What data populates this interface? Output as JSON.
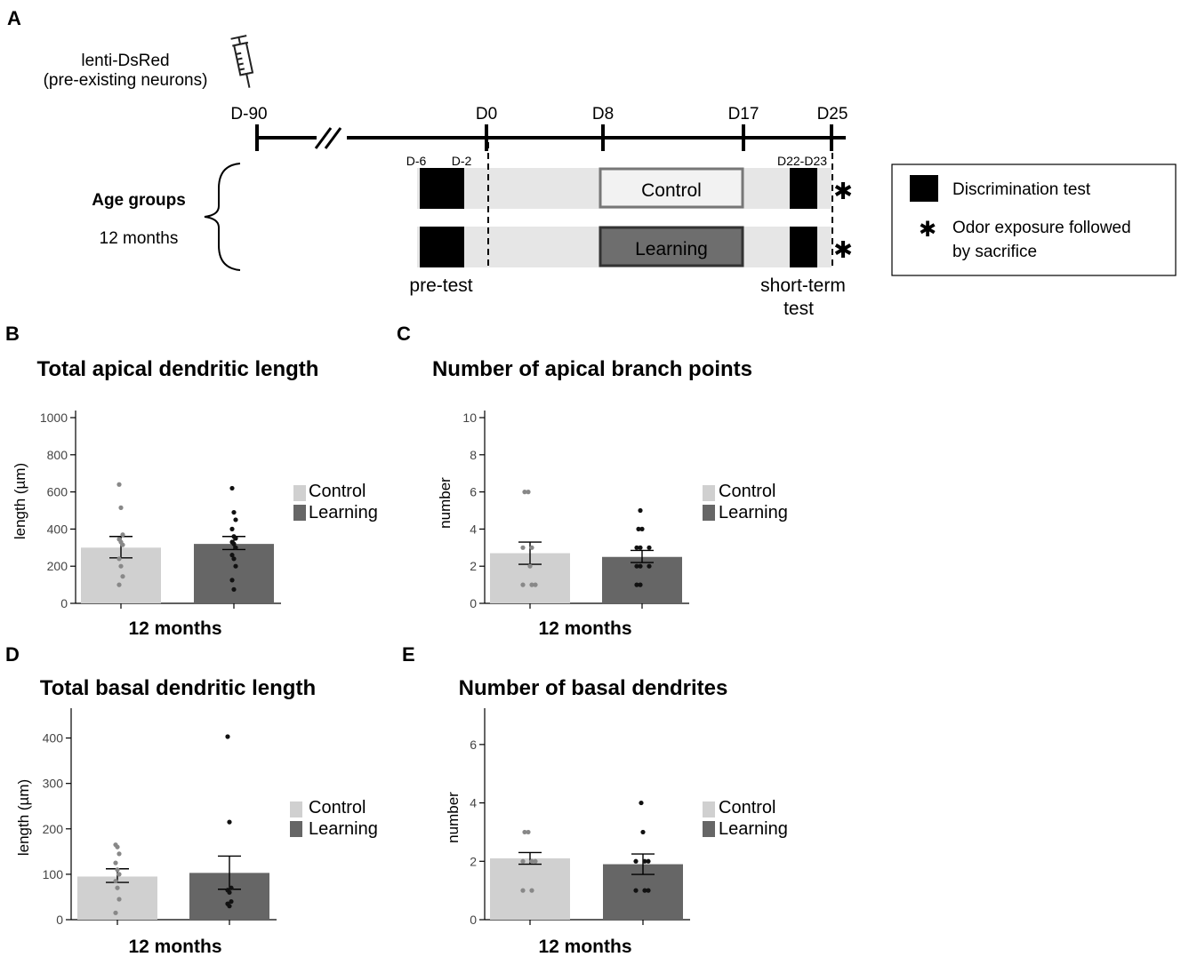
{
  "panel_a": {
    "letter": "A",
    "injection_label_line1": "lenti-DsRed",
    "injection_label_line2": "(pre-existing neurons)",
    "timeline_days": [
      "D-90",
      "D0",
      "D8",
      "D17",
      "D25"
    ],
    "period_labels": {
      "d_minus6": "D-6",
      "d_minus2": "D-2",
      "d22_d23": "D22-D23"
    },
    "age_groups_label": "Age groups",
    "age_group": "12 months",
    "control_box": "Control",
    "learning_box": "Learning",
    "pretest_label": "pre-test",
    "shortterm_label_line1": "short-term",
    "shortterm_label_line2": "test",
    "legend": {
      "discrimination": "Discrimination test",
      "odor_line1": "Odor exposure followed",
      "odor_line2": "by sacrifice",
      "asterisk": "✱"
    },
    "colors": {
      "control_box": "#f2f2f2",
      "learning_box": "#6e6e6e",
      "track": "#e6e6e6"
    }
  },
  "chart_data": [
    {
      "letter": "B",
      "type": "bar",
      "title": "Total apical dendritic length",
      "ylabel": "length (µm)",
      "xlabel": "12 months",
      "ylim": [
        0,
        1000
      ],
      "yticks": [
        0,
        200,
        400,
        600,
        800,
        1000
      ],
      "series": [
        {
          "name": "Control",
          "color": "#d0d0d0",
          "mean": 300,
          "sem_low": 245,
          "sem_high": 360,
          "points": [
            640,
            515,
            370,
            345,
            330,
            315,
            240,
            200,
            145,
            100
          ]
        },
        {
          "name": "Learning",
          "color": "#666666",
          "mean": 320,
          "sem_low": 290,
          "sem_high": 360,
          "points": [
            620,
            490,
            450,
            400,
            360,
            350,
            330,
            320,
            300,
            260,
            240,
            200,
            125,
            75
          ]
        }
      ]
    },
    {
      "letter": "C",
      "type": "bar",
      "title": "Number of apical branch points",
      "ylabel": "number",
      "xlabel": "12 months",
      "ylim": [
        0,
        10
      ],
      "yticks": [
        0,
        2,
        4,
        6,
        8,
        10
      ],
      "series": [
        {
          "name": "Control",
          "color": "#d0d0d0",
          "mean": 2.7,
          "sem_low": 2.1,
          "sem_high": 3.3,
          "points": [
            6,
            6,
            3,
            3,
            2,
            1,
            1,
            1
          ]
        },
        {
          "name": "Learning",
          "color": "#666666",
          "mean": 2.5,
          "sem_low": 2.2,
          "sem_high": 2.85,
          "points": [
            5,
            4,
            4,
            3,
            3,
            3,
            2,
            2,
            2,
            1,
            1
          ]
        }
      ]
    },
    {
      "letter": "D",
      "type": "bar",
      "title": "Total basal dendritic length",
      "ylabel": "length (µm)",
      "xlabel": "12 months",
      "ylim": [
        0,
        450
      ],
      "yticks": [
        0,
        100,
        200,
        300,
        400
      ],
      "series": [
        {
          "name": "Control",
          "color": "#d0d0d0",
          "mean": 95,
          "sem_low": 82,
          "sem_high": 112,
          "points": [
            165,
            160,
            145,
            125,
            110,
            100,
            85,
            70,
            45,
            15
          ]
        },
        {
          "name": "Learning",
          "color": "#666666",
          "mean": 103,
          "sem_low": 67,
          "sem_high": 140,
          "points": [
            403,
            215,
            70,
            65,
            60,
            40,
            35,
            30
          ]
        }
      ]
    },
    {
      "letter": "E",
      "type": "bar",
      "title": "Number of basal dendrites",
      "ylabel": "number",
      "xlabel": "12 months",
      "ylim": [
        0,
        7
      ],
      "yticks": [
        0,
        2,
        4,
        6
      ],
      "series": [
        {
          "name": "Control",
          "color": "#d0d0d0",
          "mean": 2.1,
          "sem_low": 1.9,
          "sem_high": 2.3,
          "points": [
            3,
            3,
            2,
            2,
            2,
            1,
            1
          ]
        },
        {
          "name": "Learning",
          "color": "#666666",
          "mean": 1.9,
          "sem_low": 1.55,
          "sem_high": 2.25,
          "points": [
            4,
            3,
            2,
            2,
            2,
            1,
            1,
            1
          ]
        }
      ]
    }
  ]
}
